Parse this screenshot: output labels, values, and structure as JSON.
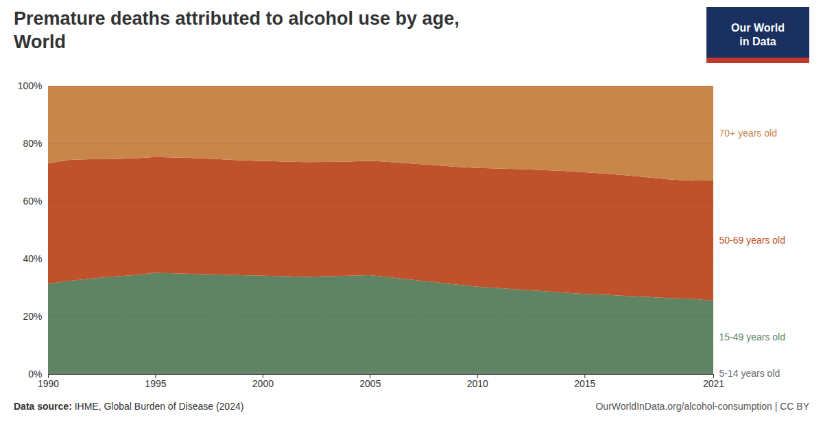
{
  "chart_data": {
    "type": "area",
    "stacked": true,
    "title": "Premature deaths attributed to alcohol use by age,",
    "subtitle": "World",
    "x": [
      1990,
      1991,
      1992,
      1993,
      1994,
      1995,
      1996,
      1997,
      1998,
      1999,
      2000,
      2001,
      2002,
      2003,
      2004,
      2005,
      2006,
      2007,
      2008,
      2009,
      2010,
      2011,
      2012,
      2013,
      2014,
      2015,
      2016,
      2017,
      2018,
      2019,
      2020,
      2021
    ],
    "series": [
      {
        "name": "5-14 years old",
        "color": "#6b6b6b",
        "values": [
          0.003,
          0.003,
          0.003,
          0.003,
          0.003,
          0.003,
          0.003,
          0.003,
          0.003,
          0.003,
          0.003,
          0.003,
          0.003,
          0.003,
          0.003,
          0.003,
          0.003,
          0.003,
          0.003,
          0.003,
          0.003,
          0.003,
          0.003,
          0.003,
          0.003,
          0.003,
          0.003,
          0.003,
          0.003,
          0.003,
          0.003,
          0.003
        ]
      },
      {
        "name": "15-49 years old",
        "color": "#5f8464",
        "values": [
          0.31,
          0.32,
          0.328,
          0.335,
          0.34,
          0.348,
          0.346,
          0.344,
          0.342,
          0.34,
          0.338,
          0.336,
          0.334,
          0.336,
          0.338,
          0.34,
          0.332,
          0.324,
          0.316,
          0.308,
          0.3,
          0.295,
          0.29,
          0.285,
          0.28,
          0.275,
          0.272,
          0.268,
          0.264,
          0.26,
          0.258,
          0.252
        ]
      },
      {
        "name": "50-69 years old",
        "color": "#c0522b",
        "values": [
          0.418,
          0.42,
          0.414,
          0.408,
          0.405,
          0.402,
          0.402,
          0.402,
          0.4,
          0.398,
          0.398,
          0.398,
          0.398,
          0.397,
          0.396,
          0.397,
          0.4,
          0.403,
          0.406,
          0.408,
          0.412,
          0.415,
          0.418,
          0.42,
          0.422,
          0.422,
          0.42,
          0.418,
          0.415,
          0.412,
          0.41,
          0.417
        ]
      },
      {
        "name": "70+ years old",
        "color": "#c8864a",
        "values": [
          0.269,
          0.257,
          0.255,
          0.254,
          0.252,
          0.247,
          0.249,
          0.251,
          0.255,
          0.259,
          0.261,
          0.263,
          0.265,
          0.264,
          0.263,
          0.26,
          0.265,
          0.27,
          0.275,
          0.281,
          0.285,
          0.287,
          0.289,
          0.292,
          0.295,
          0.3,
          0.305,
          0.311,
          0.318,
          0.325,
          0.329,
          0.328
        ]
      }
    ],
    "xlim": [
      1990,
      2021
    ],
    "xticks": [
      1990,
      1995,
      2000,
      2005,
      2010,
      2015,
      2021
    ],
    "ylim": [
      0,
      1.0
    ],
    "yticks": [
      {
        "value": 0,
        "label": "0%"
      },
      {
        "value": 0.2,
        "label": "20%"
      },
      {
        "value": 0.4,
        "label": "40%"
      },
      {
        "value": 0.6,
        "label": "60%"
      },
      {
        "value": 0.8,
        "label": "80%"
      },
      {
        "value": 1.0,
        "label": "100%"
      }
    ],
    "grid": true,
    "source_label": "Data source:",
    "source": "IHME, Global Burden of Disease (2024)",
    "url": "OurWorldInData.org/alcohol-consumption | CC BY",
    "logo": {
      "text": [
        "Our World",
        "in Data"
      ],
      "colors": [
        "#1a3060",
        "#c0392b"
      ]
    }
  }
}
